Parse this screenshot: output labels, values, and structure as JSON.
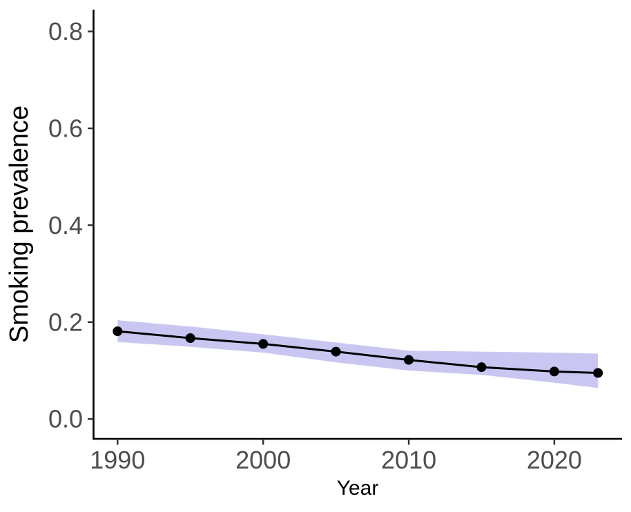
{
  "chart_data": {
    "type": "line",
    "title": "",
    "xlabel": "Year",
    "ylabel": "Smoking prevalence",
    "x": [
      1990,
      1995,
      2000,
      2005,
      2010,
      2015,
      2020,
      2023
    ],
    "series": [
      {
        "name": "smoking-prevalence",
        "values": [
          0.181,
          0.167,
          0.155,
          0.139,
          0.122,
          0.107,
          0.098,
          0.095
        ],
        "line_color": "#000000",
        "marker": "circle",
        "marker_color": "#000000"
      }
    ],
    "ribbon": {
      "name": "confidence-band",
      "upper": [
        0.204,
        0.191,
        0.175,
        0.158,
        0.141,
        0.139,
        0.137,
        0.135
      ],
      "lower": [
        0.159,
        0.149,
        0.137,
        0.117,
        0.1,
        0.091,
        0.075,
        0.064
      ],
      "fill": "#C9C7F2"
    },
    "x_ticks": [
      {
        "value": 1990,
        "label": "1990"
      },
      {
        "value": 2000,
        "label": "2000"
      },
      {
        "value": 2010,
        "label": "2010"
      },
      {
        "value": 2020,
        "label": "2020"
      }
    ],
    "y_ticks": [
      {
        "value": 0.0,
        "label": "0.0"
      },
      {
        "value": 0.2,
        "label": "0.2"
      },
      {
        "value": 0.4,
        "label": "0.4"
      },
      {
        "value": 0.6,
        "label": "0.6"
      },
      {
        "value": 0.8,
        "label": "0.8"
      }
    ],
    "xlim": [
      1988.35,
      2024.65
    ],
    "ylim": [
      -0.041,
      0.845
    ],
    "grid": false,
    "legend": "none",
    "colors": {
      "axis_line": "#000000",
      "tick_mark": "#333333",
      "tick_label": "#4D4D4D",
      "axis_title": "#000000",
      "background": "#FFFFFF"
    }
  }
}
